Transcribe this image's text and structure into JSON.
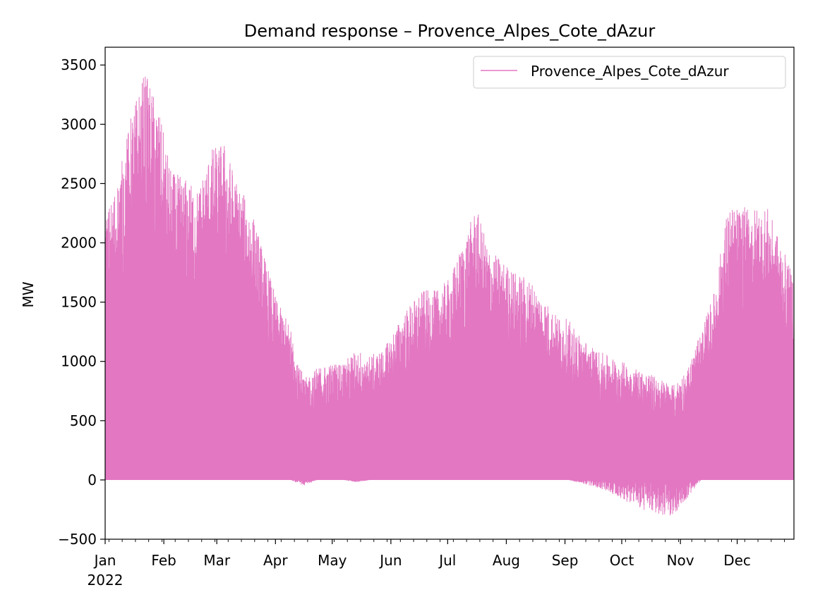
{
  "chart_data": {
    "type": "line",
    "title": "Demand response – Provence_Alpes_Cote_dAzur",
    "xlabel": "",
    "ylabel": "MW",
    "ylim": [
      -500,
      3650
    ],
    "xlim_days": [
      0,
      364
    ],
    "year_label": "2022",
    "yticks": [
      -500,
      0,
      500,
      1000,
      1500,
      2000,
      2500,
      3000,
      3500
    ],
    "ytick_labels": [
      "−500",
      "0",
      "500",
      "1000",
      "1500",
      "2000",
      "2500",
      "3000",
      "3500"
    ],
    "xticks": [
      {
        "label": "Jan",
        "day": 0
      },
      {
        "label": "Feb",
        "day": 31
      },
      {
        "label": "Mar",
        "day": 59
      },
      {
        "label": "Apr",
        "day": 90
      },
      {
        "label": "May",
        "day": 120
      },
      {
        "label": "Jun",
        "day": 151
      },
      {
        "label": "Jul",
        "day": 181
      },
      {
        "label": "Aug",
        "day": 212
      },
      {
        "label": "Sep",
        "day": 243
      },
      {
        "label": "Oct",
        "day": 273
      },
      {
        "label": "Nov",
        "day": 304
      },
      {
        "label": "Dec",
        "day": 334
      }
    ],
    "legend": {
      "position": "top-right",
      "entries": [
        "Provence_Alpes_Cote_dAzur"
      ]
    },
    "grid": false,
    "series": [
      {
        "name": "Provence_Alpes_Cote_dAzur",
        "color": "#e377c2",
        "envelope": {
          "x": [
            "2022-01-01",
            "2022-01-08",
            "2022-01-15",
            "2022-01-22",
            "2022-01-29",
            "2022-02-05",
            "2022-02-12",
            "2022-02-19",
            "2022-02-26",
            "2022-03-05",
            "2022-03-12",
            "2022-03-19",
            "2022-03-26",
            "2022-04-02",
            "2022-04-09",
            "2022-04-16",
            "2022-04-23",
            "2022-04-30",
            "2022-05-07",
            "2022-05-14",
            "2022-05-21",
            "2022-05-28",
            "2022-06-04",
            "2022-06-11",
            "2022-06-18",
            "2022-06-25",
            "2022-07-02",
            "2022-07-09",
            "2022-07-16",
            "2022-07-23",
            "2022-07-30",
            "2022-08-06",
            "2022-08-13",
            "2022-08-20",
            "2022-08-27",
            "2022-09-03",
            "2022-09-10",
            "2022-09-17",
            "2022-09-24",
            "2022-10-01",
            "2022-10-08",
            "2022-10-15",
            "2022-10-22",
            "2022-10-29",
            "2022-11-05",
            "2022-11-12",
            "2022-11-19",
            "2022-11-26",
            "2022-12-03",
            "2022-12-10",
            "2022-12-17",
            "2022-12-24",
            "2022-12-31"
          ],
          "upper": [
            2200,
            2550,
            3100,
            3450,
            3150,
            2600,
            2550,
            2450,
            2800,
            2850,
            2500,
            2300,
            1900,
            1500,
            1300,
            850,
            950,
            980,
            1000,
            1100,
            1050,
            1100,
            1300,
            1480,
            1600,
            1600,
            1700,
            2000,
            2300,
            1950,
            1850,
            1750,
            1700,
            1550,
            1400,
            1350,
            1200,
            1100,
            1050,
            1000,
            950,
            900,
            850,
            800,
            950,
            1250,
            1600,
            2300,
            2300,
            2300,
            2300,
            2000,
            1700
          ],
          "lower": [
            0,
            0,
            0,
            0,
            0,
            0,
            0,
            0,
            0,
            0,
            0,
            0,
            0,
            0,
            0,
            -50,
            0,
            0,
            0,
            -20,
            0,
            0,
            0,
            0,
            0,
            0,
            0,
            0,
            0,
            0,
            0,
            0,
            0,
            0,
            0,
            0,
            -30,
            -60,
            -100,
            -160,
            -220,
            -280,
            -300,
            -300,
            -150,
            0,
            0,
            0,
            0,
            0,
            0,
            0,
            0
          ]
        }
      }
    ]
  }
}
